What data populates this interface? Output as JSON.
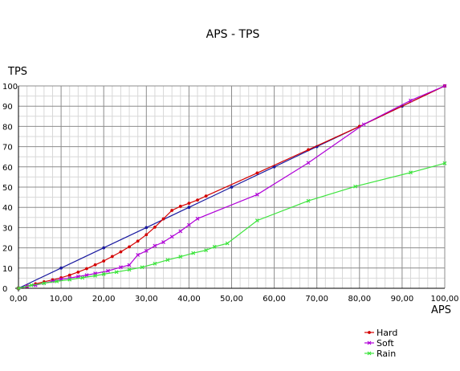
{
  "chart_data": {
    "type": "line",
    "title": "APS - TPS",
    "xlabel": "APS",
    "ylabel": "TPS",
    "xlim": [
      0,
      100
    ],
    "ylim": [
      0,
      100
    ],
    "grid": true,
    "legend_position": "bottom-right",
    "x_ticks": [
      "0,00",
      "10,00",
      "20,00",
      "30,00",
      "40,00",
      "50,00",
      "60,00",
      "70,00",
      "80,00",
      "90,00",
      "100,00"
    ],
    "y_ticks": [
      "0",
      "10",
      "20",
      "30",
      "40",
      "50",
      "60",
      "70",
      "80",
      "90",
      "100"
    ],
    "series": [
      {
        "color": "#1a1aa0",
        "marker": "dot",
        "points": [
          [
            0,
            0
          ],
          [
            10,
            10
          ],
          [
            20,
            20
          ],
          [
            30,
            30
          ],
          [
            40,
            40
          ],
          [
            50,
            50
          ],
          [
            60,
            60
          ],
          [
            70,
            70
          ],
          [
            80,
            80
          ],
          [
            90,
            90
          ],
          [
            100,
            100
          ]
        ]
      },
      {
        "name": "Hard",
        "color": "#d40000",
        "marker": "dot",
        "points": [
          [
            0,
            0
          ],
          [
            2,
            1
          ],
          [
            4,
            2.2
          ],
          [
            6,
            3.2
          ],
          [
            8,
            4.2
          ],
          [
            10,
            5.2
          ],
          [
            12,
            6.5
          ],
          [
            14,
            8
          ],
          [
            16,
            9.7
          ],
          [
            18,
            11.6
          ],
          [
            20,
            13.5
          ],
          [
            22,
            15.7
          ],
          [
            24,
            18
          ],
          [
            26,
            20.5
          ],
          [
            28,
            23.3
          ],
          [
            30,
            26.5
          ],
          [
            32,
            30.2
          ],
          [
            34,
            34.3
          ],
          [
            36,
            38.5
          ],
          [
            38,
            40.5
          ],
          [
            40,
            42
          ],
          [
            42,
            43.6
          ],
          [
            44,
            45.6
          ],
          [
            56,
            57
          ],
          [
            68,
            68.5
          ],
          [
            80,
            80
          ],
          [
            100,
            100
          ]
        ]
      },
      {
        "name": "Soft",
        "color": "#b000d8",
        "marker": "x",
        "points": [
          [
            0,
            0
          ],
          [
            2,
            1
          ],
          [
            4,
            1.5
          ],
          [
            6,
            2.5
          ],
          [
            8,
            3.5
          ],
          [
            10,
            4.5
          ],
          [
            12,
            5
          ],
          [
            14,
            5.8
          ],
          [
            16,
            6.5
          ],
          [
            18,
            7.3
          ],
          [
            21,
            8.6
          ],
          [
            24,
            10.4
          ],
          [
            26,
            11.5
          ],
          [
            28,
            16.5
          ],
          [
            30,
            18.5
          ],
          [
            32,
            21
          ],
          [
            34,
            22.8
          ],
          [
            36,
            25.5
          ],
          [
            38,
            28.2
          ],
          [
            40,
            31.3
          ],
          [
            42,
            34.4
          ],
          [
            56,
            46.3
          ],
          [
            68,
            62
          ],
          [
            81,
            81
          ],
          [
            92,
            92.8
          ],
          [
            100,
            100
          ]
        ]
      },
      {
        "name": "Rain",
        "color": "#3ce43c",
        "marker": "x",
        "points": [
          [
            0,
            0
          ],
          [
            3,
            1.5
          ],
          [
            6,
            2.5
          ],
          [
            9,
            3.4
          ],
          [
            12,
            4.3
          ],
          [
            15,
            5.2
          ],
          [
            18,
            6.2
          ],
          [
            20,
            7
          ],
          [
            23,
            8
          ],
          [
            26,
            9.2
          ],
          [
            29,
            10.4
          ],
          [
            32,
            12.2
          ],
          [
            35,
            14
          ],
          [
            38,
            15.6
          ],
          [
            41,
            17.4
          ],
          [
            44,
            18.8
          ],
          [
            46,
            20.5
          ],
          [
            49,
            22.2
          ],
          [
            56,
            33.5
          ],
          [
            68,
            43.2
          ],
          [
            79,
            50.3
          ],
          [
            92,
            57.2
          ],
          [
            100,
            61.8
          ]
        ]
      }
    ]
  }
}
